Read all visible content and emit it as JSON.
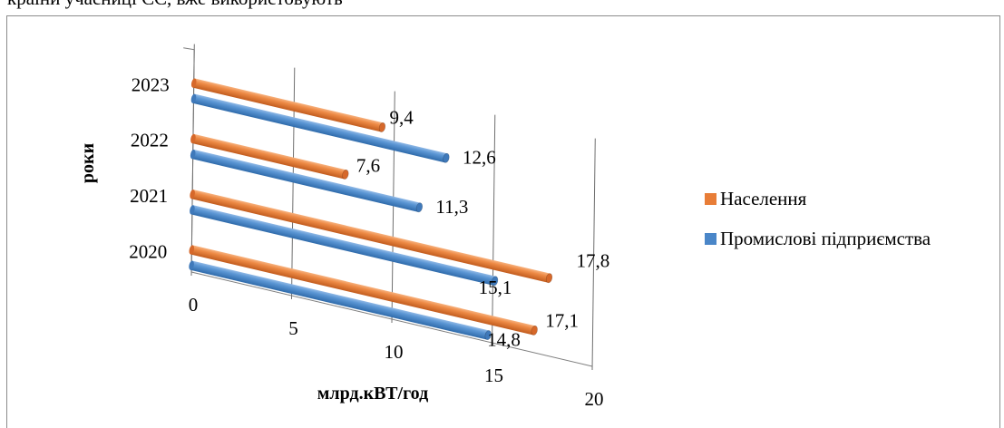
{
  "caption": "країни учасниці ЄС, вже використовують",
  "chart_data": {
    "type": "bar",
    "orientation": "horizontal",
    "style": "3d-cylinder",
    "categories": [
      "2020",
      "2021",
      "2022",
      "2023"
    ],
    "series": [
      {
        "name": "Промислові підприємства",
        "color": "#4a86c8",
        "values": [
          14.8,
          15.1,
          11.3,
          12.6
        ]
      },
      {
        "name": "Населення",
        "color": "#e87d37",
        "values": [
          17.1,
          17.8,
          7.6,
          9.4
        ]
      }
    ],
    "xlabel": "млрд.кВТ/год",
    "ylabel": "роки",
    "xlim": [
      0,
      20
    ],
    "x_ticks": [
      "0",
      "5",
      "10",
      "15",
      "20"
    ],
    "legend_position": "right",
    "grid": true
  }
}
